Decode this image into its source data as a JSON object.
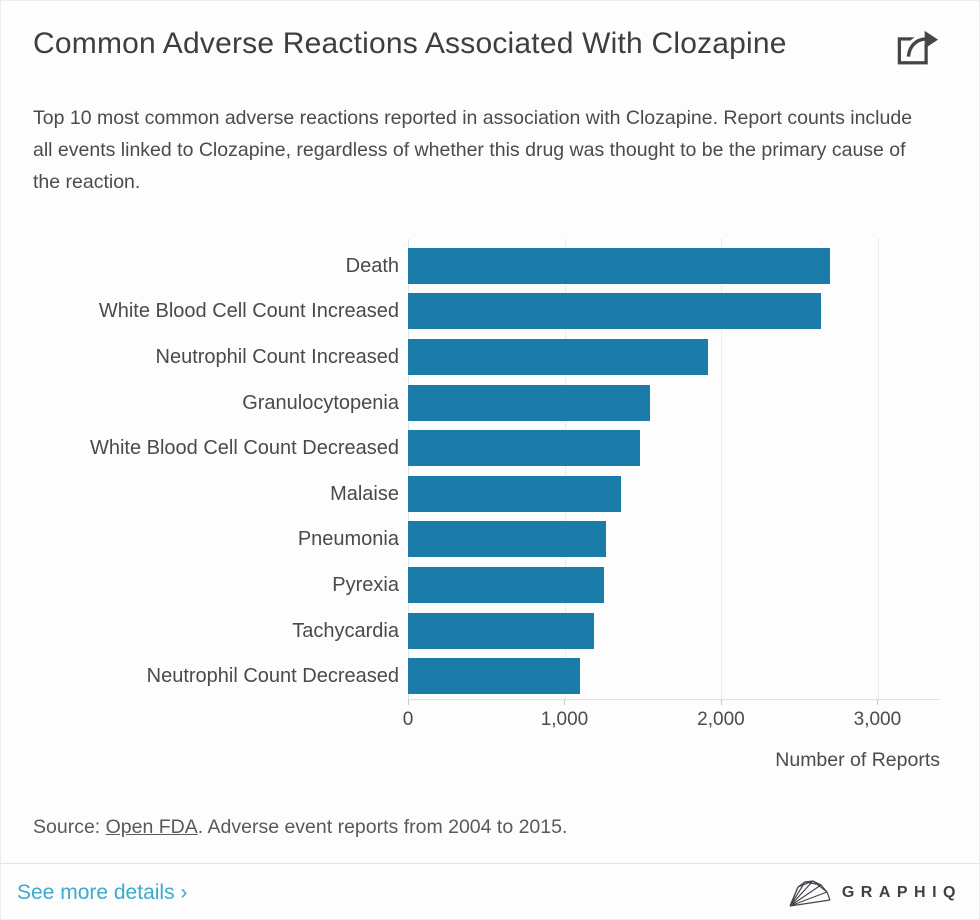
{
  "header": {
    "title": "Common Adverse Reactions Associated With Clozapine",
    "description": "Top 10 most common adverse reactions reported in association with Clozapine. Report counts include all events linked to Clozapine, regardless of whether this drug was thought to be the primary cause of the reaction."
  },
  "chart_data": {
    "type": "bar",
    "orientation": "horizontal",
    "categories": [
      "Death",
      "White Blood Cell Count Increased",
      "Neutrophil Count Increased",
      "Granulocytopenia",
      "White Blood Cell Count Decreased",
      "Malaise",
      "Pneumonia",
      "Pyrexia",
      "Tachycardia",
      "Neutrophil Count Decreased"
    ],
    "values": [
      2700,
      2640,
      1915,
      1545,
      1480,
      1360,
      1265,
      1250,
      1190,
      1100
    ],
    "xlabel": "Number of Reports",
    "ylabel": "",
    "xlim": [
      0,
      3400
    ],
    "xticks": [
      0,
      1000,
      2000,
      3000
    ],
    "xtick_labels": [
      "0",
      "1,000",
      "2,000",
      "3,000"
    ],
    "grid": "vertical dotted gridlines at x ticks",
    "legend": "none",
    "bar_color": "#1b7caa"
  },
  "source": {
    "prefix": "Source: ",
    "link_text": "Open FDA",
    "suffix": ". Adverse event reports from 2004 to 2015."
  },
  "footer": {
    "see_more_label": "See more details ›",
    "brand_name": "GRAPHIQ"
  },
  "icons": {
    "share": "share-icon",
    "brand": "graphiq-mesh-icon"
  },
  "colors": {
    "bar": "#1b7caa",
    "link": "#3aaacd",
    "title_text": "#3e3e3e",
    "body_text": "#4b4b4b",
    "gridline": "#dcdcdc"
  }
}
